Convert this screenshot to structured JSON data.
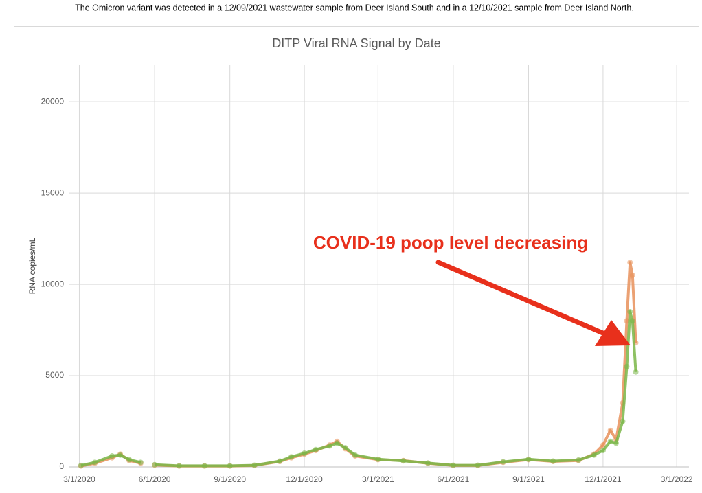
{
  "header": {
    "note": "The Omicron variant was detected in a 12/09/2021 wastewater sample from Deer Island South and in a 12/10/2021 sample from Deer Island North."
  },
  "chart_data": {
    "type": "line",
    "title": "DITP Viral RNA Signal by Date",
    "y_label": "RNA copies/mL",
    "annotation": "COVID-19 poop level decreasing",
    "x": [
      "3/3/2020",
      "3/20/2020",
      "4/10/2020",
      "4/20/2020",
      "5/1/2020",
      "5/15/2020",
      "5/25/2020",
      "6/1/2020",
      "7/1/2020",
      "8/1/2020",
      "9/1/2020",
      "10/1/2020",
      "11/1/2020",
      "11/15/2020",
      "12/1/2020",
      "12/15/2020",
      "1/1/2021",
      "1/10/2021",
      "1/20/2021",
      "2/1/2021",
      "3/1/2021",
      "4/1/2021",
      "5/1/2021",
      "6/1/2021",
      "7/1/2021",
      "8/1/2021",
      "9/1/2021",
      "10/1/2021",
      "11/1/2021",
      "11/20/2021",
      "12/1/2021",
      "12/10/2021",
      "12/17/2021",
      "12/25/2021",
      "12/30/2021",
      "1/3/2022",
      "1/6/2022",
      "1/10/2022"
    ],
    "series": [
      {
        "color": "#e8915a",
        "values": [
          50,
          200,
          500,
          700,
          350,
          200,
          null,
          100,
          50,
          50,
          50,
          80,
          300,
          500,
          700,
          900,
          1200,
          1400,
          1000,
          600,
          400,
          350,
          200,
          80,
          80,
          250,
          400,
          300,
          350,
          700,
          1200,
          2000,
          1500,
          3500,
          8000,
          11200,
          10500,
          6800
        ]
      },
      {
        "color": "#7ab648",
        "values": [
          80,
          250,
          600,
          650,
          400,
          250,
          null,
          120,
          60,
          60,
          60,
          90,
          320,
          550,
          750,
          950,
          1150,
          1300,
          1050,
          650,
          420,
          330,
          210,
          90,
          90,
          280,
          420,
          320,
          380,
          650,
          900,
          1400,
          1300,
          2500,
          5500,
          8500,
          8000,
          5200
        ]
      }
    ],
    "xlim": [
      "2/17/2020",
      "3/16/2022"
    ],
    "xticks": [
      "3/1/2020",
      "6/1/2020",
      "9/1/2020",
      "12/1/2020",
      "3/1/2021",
      "6/1/2021",
      "9/1/2021",
      "12/1/2021",
      "3/1/2022"
    ],
    "ylim": [
      0,
      22000
    ],
    "yticks": [
      0,
      5000,
      10000,
      15000,
      20000
    ],
    "grid": true
  }
}
